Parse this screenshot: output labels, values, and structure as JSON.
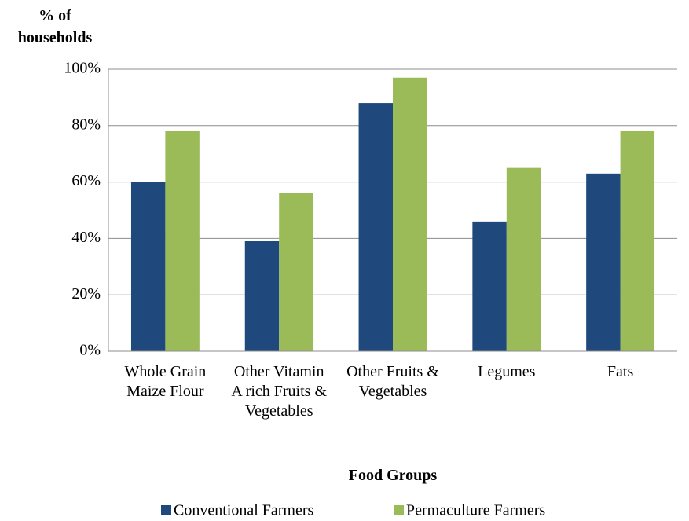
{
  "chart_data": {
    "type": "bar",
    "y_label": "% of households",
    "x_label": "Food Groups",
    "categories": [
      "Whole Grain Maize Flour",
      "Other Vitamin A rich Fruits & Vegetables",
      "Other Fruits & Vegetables",
      "Legumes",
      "Fats"
    ],
    "series": [
      {
        "name": "Conventional Farmers",
        "color": "#1f497d",
        "values": [
          60,
          39,
          88,
          46,
          63
        ]
      },
      {
        "name": "Permaculture Farmers",
        "color": "#9bbb59",
        "values": [
          78,
          56,
          97,
          65,
          78
        ]
      }
    ],
    "ylim": [
      0,
      100
    ],
    "yticks": [
      {
        "value": 0,
        "label": "0%"
      },
      {
        "value": 20,
        "label": "20%"
      },
      {
        "value": 40,
        "label": "40%"
      },
      {
        "value": 60,
        "label": "60%"
      },
      {
        "value": 80,
        "label": "80%"
      },
      {
        "value": 100,
        "label": "100%"
      }
    ],
    "grid": true,
    "legend": "bottom"
  }
}
